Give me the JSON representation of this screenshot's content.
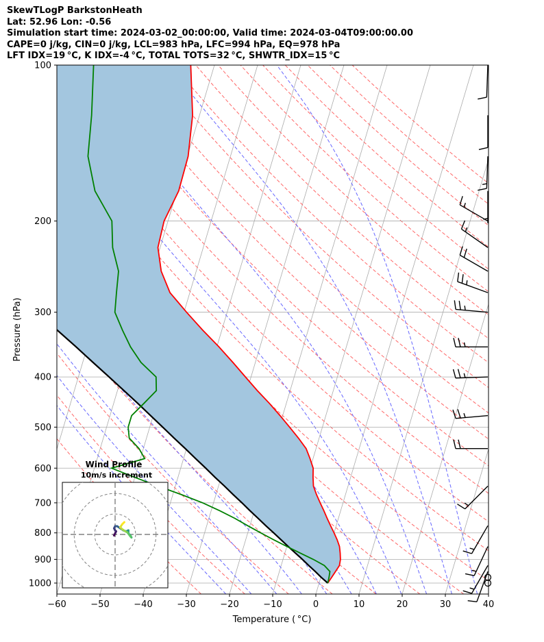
{
  "header": {
    "title": "SkewTLogP BarkstonHeath",
    "location": "Lat: 52.96   Lon: -0.56",
    "times": "Simulation start time: 2024-03-02_00:00:00, Valid time: 2024-03-04T09:00:00.00",
    "params": "CAPE=0 j/kg, CIN=0 j/kg, LCL=983 hPa, LFC=994 hPa, EQ=978 hPa",
    "indices": "LFT IDX=19 °C, K IDX=-4 °C, TOTAL TOTS=32 °C, SHWTR_IDX=15 °C"
  },
  "chart_data": {
    "type": "line",
    "subtype": "skew-t log-p diagram",
    "xlabel": "Temperature ( °C)",
    "ylabel": "Pressure (hPa)",
    "xlim": [
      -60,
      40
    ],
    "ylim_hpa": [
      1050,
      100
    ],
    "y_scale": "log",
    "x_ticks": [
      -60,
      -50,
      -40,
      -30,
      -20,
      -10,
      0,
      10,
      20,
      30,
      40
    ],
    "y_ticks": [
      100,
      200,
      300,
      400,
      500,
      600,
      700,
      800,
      900,
      1000
    ],
    "grid": true,
    "colors": {
      "temperature": "#ff0000",
      "dewpoint": "#008000",
      "parcel": "#000000",
      "shade": "#a3c6df",
      "dry_adiabat": "#ff6666",
      "moist_adiabat": "#6666ff",
      "isotherm": "#aaaaaa"
    },
    "series": [
      {
        "key": "temperature",
        "pressure": [
          1000,
          975,
          950,
          925,
          900,
          875,
          850,
          825,
          800,
          775,
          750,
          725,
          700,
          675,
          650,
          625,
          600,
          575,
          550,
          525,
          500,
          475,
          450,
          425,
          400,
          375,
          350,
          325,
          300,
          275,
          250,
          225,
          200,
          175,
          150,
          125,
          100
        ],
        "values": [
          2.0,
          2.5,
          3.0,
          3.5,
          3.3,
          2.8,
          2.2,
          1.2,
          0.0,
          -1.3,
          -2.6,
          -3.9,
          -5.3,
          -6.7,
          -8.0,
          -8.7,
          -9.3,
          -10.7,
          -12.3,
          -14.8,
          -17.6,
          -20.6,
          -23.9,
          -27.6,
          -31.3,
          -35.2,
          -39.5,
          -44.4,
          -49.4,
          -54.6,
          -58.1,
          -60.5,
          -60.9,
          -59.6,
          -59.8,
          -61.6,
          -65.5
        ]
      },
      {
        "key": "dewpoint",
        "pressure": [
          1000,
          975,
          950,
          925,
          900,
          875,
          850,
          825,
          800,
          775,
          750,
          725,
          700,
          675,
          650,
          625,
          600,
          575,
          550,
          525,
          500,
          475,
          450,
          425,
          400,
          375,
          350,
          325,
          300,
          275,
          250,
          225,
          200,
          175,
          150,
          125,
          100
        ],
        "values": [
          2.0,
          1.9,
          1.7,
          0.0,
          -3.0,
          -6.5,
          -10.0,
          -13.5,
          -17.0,
          -20.5,
          -24.0,
          -28.0,
          -32.5,
          -38.0,
          -44.0,
          -50.0,
          -56.0,
          -49.0,
          -51.0,
          -54.0,
          -55.0,
          -55.0,
          -53.0,
          -51.0,
          -52.0,
          -56.5,
          -60.0,
          -63.0,
          -66.0,
          -67.0,
          -68.0,
          -71.0,
          -73.0,
          -79.0,
          -83.0,
          -85.0,
          -88.0
        ]
      },
      {
        "key": "parcel",
        "pressure": [
          1000,
          975,
          950,
          925,
          900,
          875,
          850,
          825,
          800,
          775,
          750,
          725,
          700,
          675,
          650,
          625,
          600,
          575,
          550,
          525,
          500,
          475,
          450,
          425,
          400,
          375,
          350,
          325,
          300,
          275,
          250,
          225,
          200,
          175,
          150,
          125,
          100
        ],
        "values": [
          2.0,
          0.1,
          -1.7,
          -3.6,
          -5.5,
          -7.6,
          -9.7,
          -11.8,
          -14.0,
          -16.3,
          -18.6,
          -21.0,
          -23.4,
          -26.0,
          -28.6,
          -31.4,
          -34.2,
          -37.2,
          -40.3,
          -43.6,
          -47.0,
          -50.6,
          -54.4,
          -58.5,
          -62.9,
          -67.6,
          -72.6,
          -78.1,
          -84.0,
          -90.5,
          -97.6,
          -105.4,
          -114.1,
          -123.8,
          -134.8,
          -147.7,
          -163.3
        ]
      }
    ],
    "wind_barbs": [
      {
        "p": 1000,
        "speed_kt": 0
      },
      {
        "p": 975,
        "speed_kt": 0
      },
      {
        "p": 950,
        "speed_kt": 10,
        "dir_deg": 200
      },
      {
        "p": 925,
        "speed_kt": 15,
        "dir_deg": 210
      },
      {
        "p": 850,
        "speed_kt": 15,
        "dir_deg": 205
      },
      {
        "p": 775,
        "speed_kt": 15,
        "dir_deg": 210
      },
      {
        "p": 650,
        "speed_kt": 15,
        "dir_deg": 225
      },
      {
        "p": 550,
        "speed_kt": 20,
        "dir_deg": 270
      },
      {
        "p": 475,
        "speed_kt": 25,
        "dir_deg": 265
      },
      {
        "p": 400,
        "speed_kt": 25,
        "dir_deg": 268
      },
      {
        "p": 350,
        "speed_kt": 25,
        "dir_deg": 270
      },
      {
        "p": 300,
        "speed_kt": 25,
        "dir_deg": 275
      },
      {
        "p": 275,
        "speed_kt": 25,
        "dir_deg": 290
      },
      {
        "p": 250,
        "speed_kt": 20,
        "dir_deg": 300
      },
      {
        "p": 225,
        "speed_kt": 15,
        "dir_deg": 305
      },
      {
        "p": 200,
        "speed_kt": 15,
        "dir_deg": 300
      },
      {
        "p": 175,
        "speed_kt": 5,
        "dir_deg": 180
      },
      {
        "p": 150,
        "speed_kt": 15,
        "dir_deg": 182
      },
      {
        "p": 125,
        "speed_kt": 10,
        "dir_deg": 180
      },
      {
        "p": 100,
        "speed_kt": 10,
        "dir_deg": 182
      }
    ],
    "inset": {
      "title": "Wind Profile",
      "subtitle": "10m/s increment",
      "type": "hodograph",
      "ring_spacing_ms": 10,
      "range_ms": 25,
      "trace_uv": [
        [
          -0.5,
          -0.5
        ],
        [
          0,
          0.5
        ],
        [
          0.5,
          1.5
        ],
        [
          0,
          2
        ],
        [
          -0.5,
          3
        ],
        [
          0,
          4
        ],
        [
          1,
          4
        ],
        [
          2.5,
          3
        ],
        [
          4,
          2
        ],
        [
          5.5,
          1.5
        ],
        [
          6.5,
          2
        ],
        [
          6.5,
          0.5
        ],
        [
          7.5,
          -0.5
        ],
        [
          8,
          -1.5
        ],
        [
          7.5,
          -1
        ],
        [
          6,
          1
        ],
        [
          5,
          1.5
        ],
        [
          3.5,
          2.5
        ],
        [
          2.5,
          3.5
        ],
        [
          3.5,
          5
        ],
        [
          4.5,
          6
        ]
      ]
    }
  }
}
